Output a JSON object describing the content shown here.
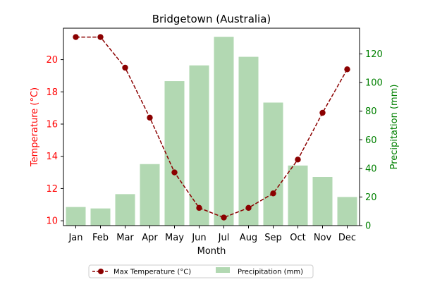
{
  "chart_data": {
    "type": "bar+line",
    "title": "Bridgetown (Australia)",
    "xlabel": "Month",
    "ylabel_left": "Temperature (°C)",
    "ylabel_right": "Precipitation (mm)",
    "categories": [
      "Jan",
      "Feb",
      "Mar",
      "Apr",
      "May",
      "Jun",
      "Jul",
      "Aug",
      "Sep",
      "Oct",
      "Nov",
      "Dec"
    ],
    "series": [
      {
        "name": "Max Temperature (°C)",
        "type": "line",
        "axis": "left",
        "color": "#8b0000",
        "values": [
          21.4,
          21.4,
          19.5,
          16.4,
          13.0,
          10.8,
          10.2,
          10.8,
          11.7,
          13.8,
          16.7,
          19.4
        ]
      },
      {
        "name": "Precipitation (mm)",
        "type": "bar",
        "axis": "right",
        "color": "#b2d8b2",
        "values": [
          13,
          12,
          22,
          43,
          101,
          112,
          132,
          118,
          86,
          42,
          34,
          20
        ]
      }
    ],
    "ylim_left": [
      9.7,
      21.95
    ],
    "ylim_right": [
      0,
      138
    ],
    "yticks_left": [
      "10",
      "12",
      "14",
      "16",
      "18",
      "20"
    ],
    "yticks_right": [
      "0",
      "20",
      "40",
      "60",
      "80",
      "100",
      "120"
    ],
    "left_axis_color": "#ff0000",
    "right_axis_color": "#008000",
    "grid": false,
    "legend_position": "bottom-center"
  }
}
